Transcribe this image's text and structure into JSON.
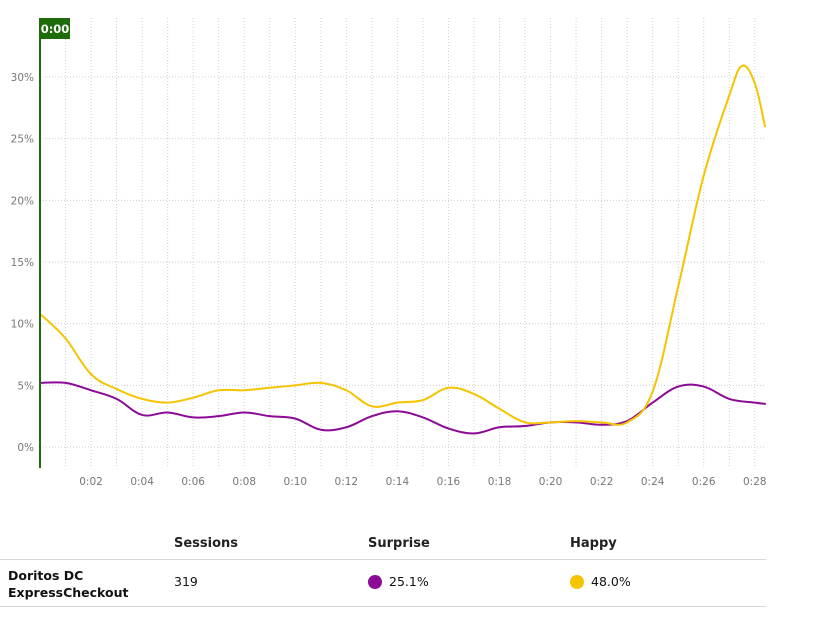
{
  "chart_data": {
    "type": "line",
    "marker_label": "0:00",
    "x_ticks": [
      "0:02",
      "0:04",
      "0:06",
      "0:08",
      "0:10",
      "0:12",
      "0:14",
      "0:16",
      "0:18",
      "0:20",
      "0:22",
      "0:24",
      "0:26",
      "0:28"
    ],
    "y_ticks": [
      "0%",
      "5%",
      "10%",
      "15%",
      "20%",
      "25%",
      "30%"
    ],
    "ylim": [
      0,
      33
    ],
    "xlim": [
      0,
      28.4
    ],
    "grid": true,
    "series": [
      {
        "name": "Surprise",
        "color": "#8b0a96",
        "x": [
          0,
          1,
          2,
          3,
          4,
          5,
          6,
          7,
          8,
          9,
          10,
          11,
          12,
          13,
          14,
          15,
          16,
          17,
          18,
          19,
          20,
          21,
          22,
          23,
          24,
          25,
          26,
          27,
          28,
          28.4
        ],
        "values": [
          5.2,
          5.2,
          4.6,
          3.9,
          2.6,
          2.8,
          2.4,
          2.5,
          2.8,
          2.5,
          2.3,
          1.4,
          1.6,
          2.5,
          2.9,
          2.4,
          1.5,
          1.1,
          1.6,
          1.7,
          2.0,
          2.0,
          1.8,
          2.1,
          3.6,
          4.9,
          4.9,
          3.9,
          3.6,
          3.5
        ]
      },
      {
        "name": "Happy",
        "color": "#f5c400",
        "x": [
          0,
          1,
          2,
          3,
          4,
          5,
          6,
          7,
          8,
          9,
          10,
          11,
          12,
          13,
          14,
          15,
          16,
          17,
          18,
          19,
          20,
          21,
          22,
          23,
          24,
          25,
          26,
          27,
          27.5,
          28,
          28.4
        ],
        "values": [
          10.8,
          8.8,
          5.9,
          4.7,
          3.9,
          3.6,
          4.0,
          4.6,
          4.6,
          4.8,
          5.0,
          5.2,
          4.6,
          3.3,
          3.6,
          3.8,
          4.8,
          4.3,
          3.1,
          2.0,
          2.0,
          2.1,
          2.0,
          2.0,
          4.5,
          13.0,
          22.0,
          28.5,
          30.9,
          29.5,
          26.0
        ]
      }
    ]
  },
  "table": {
    "headers": {
      "sessions": "Sessions",
      "surprise": "Surprise",
      "happy": "Happy"
    },
    "rows": [
      {
        "name_line1": "Doritos DC",
        "name_line2": "ExpressCheckout",
        "sessions": "319",
        "surprise": "25.1%",
        "happy": "48.0%",
        "surprise_color": "#8b0a96",
        "happy_color": "#f5c400"
      }
    ]
  }
}
